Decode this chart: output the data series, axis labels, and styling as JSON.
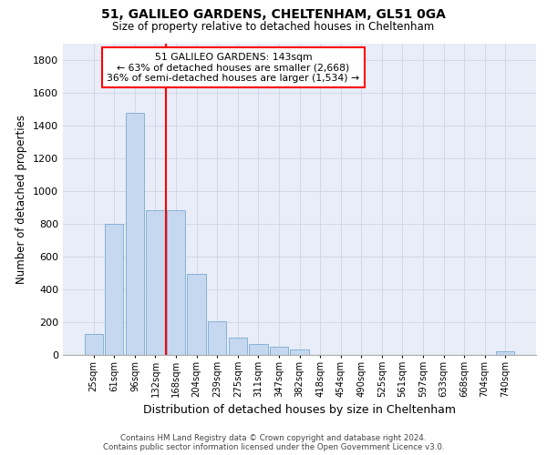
{
  "title1": "51, GALILEO GARDENS, CHELTENHAM, GL51 0GA",
  "title2": "Size of property relative to detached houses in Cheltenham",
  "xlabel": "Distribution of detached houses by size in Cheltenham",
  "ylabel": "Number of detached properties",
  "footer1": "Contains HM Land Registry data © Crown copyright and database right 2024.",
  "footer2": "Contains public sector information licensed under the Open Government Licence v3.0.",
  "categories": [
    "25sqm",
    "61sqm",
    "96sqm",
    "132sqm",
    "168sqm",
    "204sqm",
    "239sqm",
    "275sqm",
    "311sqm",
    "347sqm",
    "382sqm",
    "418sqm",
    "454sqm",
    "490sqm",
    "525sqm",
    "561sqm",
    "597sqm",
    "633sqm",
    "668sqm",
    "704sqm",
    "740sqm"
  ],
  "values": [
    125,
    800,
    1475,
    880,
    880,
    495,
    205,
    105,
    65,
    50,
    35,
    0,
    0,
    0,
    0,
    0,
    0,
    0,
    0,
    0,
    20
  ],
  "bar_color": "#c5d8f0",
  "bar_edge_color": "#7aabce",
  "vline_color": "red",
  "vline_pos": 3.5,
  "annotation_title": "51 GALILEO GARDENS: 143sqm",
  "annotation_line2": "← 63% of detached houses are smaller (2,668)",
  "annotation_line3": "36% of semi-detached houses are larger (1,534) →",
  "ylim_max": 1900,
  "yticks": [
    0,
    200,
    400,
    600,
    800,
    1000,
    1200,
    1400,
    1600,
    1800
  ],
  "grid_color": "#d0d8e8",
  "bg_color": "#e8edf8"
}
